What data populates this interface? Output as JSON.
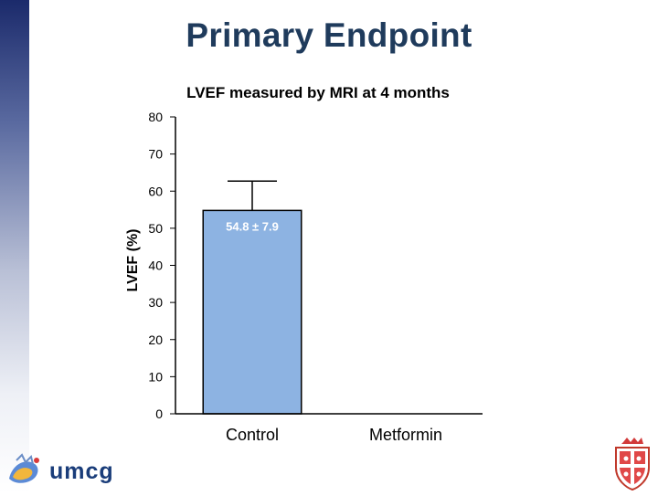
{
  "slide": {
    "title": "Primary Endpoint",
    "logo_left_text": "umcg"
  },
  "chart_data": {
    "type": "bar",
    "title": "LVEF measured by MRI at 4 months",
    "ylabel": "LVEF (%)",
    "xlabel": "",
    "ylim": [
      0,
      80
    ],
    "yticks": [
      0,
      10,
      20,
      30,
      40,
      50,
      60,
      70,
      80
    ],
    "categories": [
      "Control",
      "Metformin"
    ],
    "values": [
      54.8,
      null
    ],
    "errors": [
      7.9,
      null
    ],
    "data_labels": [
      "54.8 ± 7.9",
      ""
    ],
    "bar_color": "#8db3e2",
    "bar_edge_color": "#000000"
  }
}
